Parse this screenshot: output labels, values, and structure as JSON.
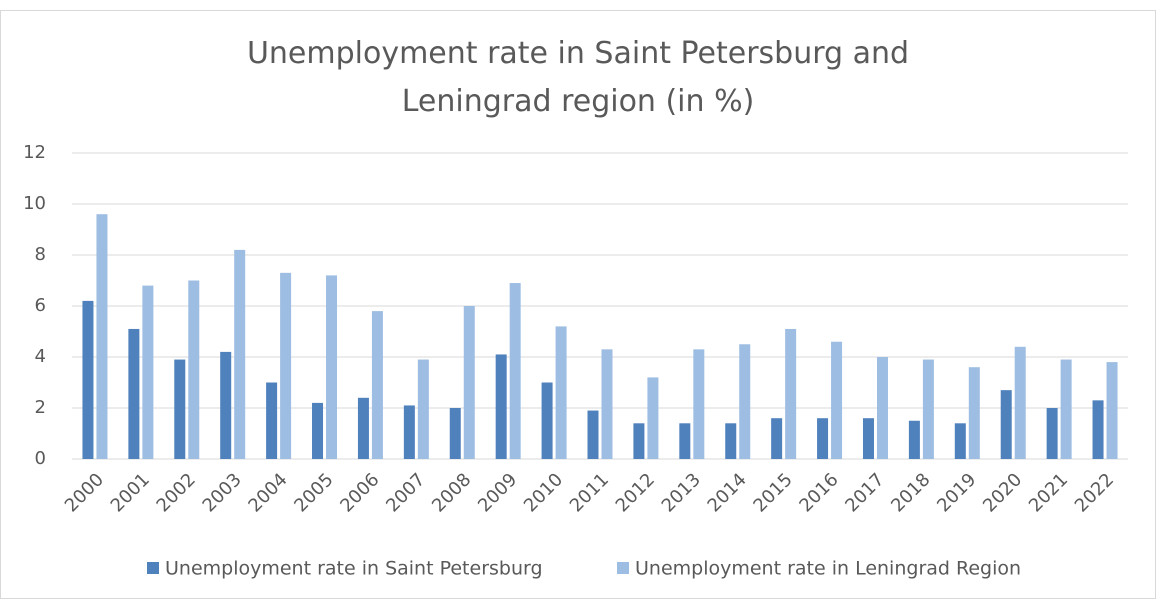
{
  "chart_data": {
    "type": "bar",
    "title": "Unemployment rate in Saint Petersburg and Leningrad region (in %)",
    "categories": [
      "2000",
      "2001",
      "2002",
      "2003",
      "2004",
      "2005",
      "2006",
      "2007",
      "2008",
      "2009",
      "2010",
      "2011",
      "2012",
      "2013",
      "2014",
      "2015",
      "2016",
      "2017",
      "2018",
      "2019",
      "2020",
      "2021",
      "2022"
    ],
    "series": [
      {
        "name": "Unemployment rate in Saint Petersburg",
        "color": "#4f81bd",
        "values": [
          6.2,
          5.1,
          3.9,
          4.2,
          3.0,
          2.2,
          2.4,
          2.1,
          2.0,
          4.1,
          3.0,
          1.9,
          1.4,
          1.4,
          1.4,
          1.6,
          1.6,
          1.6,
          1.5,
          1.4,
          2.7,
          2.0,
          2.3
        ]
      },
      {
        "name": "Unemployment rate in Leningrad Region",
        "color": "#9dbde2",
        "values": [
          9.6,
          6.8,
          7.0,
          8.2,
          7.3,
          7.2,
          5.8,
          3.9,
          6.0,
          6.9,
          5.2,
          4.3,
          3.2,
          4.3,
          4.5,
          5.1,
          4.6,
          4.0,
          3.9,
          3.6,
          4.4,
          3.9,
          3.8
        ]
      }
    ],
    "ylim": [
      0,
      12
    ],
    "yticks": [
      0,
      2,
      4,
      6,
      8,
      10,
      12
    ],
    "grid": true,
    "legend": "bottom"
  }
}
